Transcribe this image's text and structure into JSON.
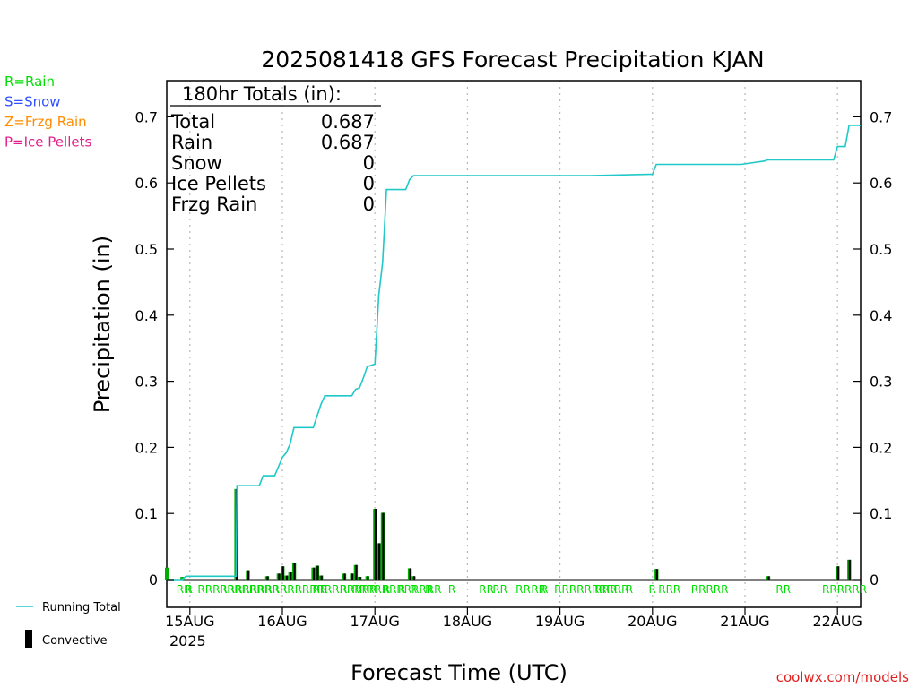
{
  "chart_data": {
    "type": "line",
    "title": "2025081418 GFS Forecast Precipitation KJAN",
    "xlabel": "Forecast Time (UTC)",
    "ylabel": "Precipitation (in)",
    "ylim": [
      0,
      0.75
    ],
    "yticks": [
      "0",
      "0.1",
      "0.2",
      "0.3",
      "0.4",
      "0.5",
      "0.6",
      "0.7"
    ],
    "xticks": [
      {
        "t": 6,
        "label": "15AUG"
      },
      {
        "t": 30,
        "label": "16AUG"
      },
      {
        "t": 54,
        "label": "17AUG"
      },
      {
        "t": 78,
        "label": "18AUG"
      },
      {
        "t": 102,
        "label": "19AUG"
      },
      {
        "t": 126,
        "label": "20AUG"
      },
      {
        "t": 150,
        "label": "21AUG"
      },
      {
        "t": 174,
        "label": "22AUG"
      }
    ],
    "year_label": "2025",
    "grid": true,
    "colors": {
      "running_total": "#20c8c8",
      "convective": "#000000",
      "bar_fill": "#00b000",
      "rain": "#00e000",
      "snow": "#3050ff",
      "frzg": "#ff8c00",
      "ice": "#e0208c",
      "credit": "#e02020"
    },
    "totals_box": {
      "header": "180hr Totals (in):",
      "rows": [
        {
          "label": "Total",
          "value": "0.687"
        },
        {
          "label": "Rain",
          "value": "0.687"
        },
        {
          "label": "Snow",
          "value": "0"
        },
        {
          "label": "Ice Pellets",
          "value": "0"
        },
        {
          "label": "Frzg Rain",
          "value": "0"
        }
      ]
    },
    "ptype_key": [
      {
        "label": "R=Rain",
        "color": "#00e000"
      },
      {
        "label": "S=Snow",
        "color": "#3050ff"
      },
      {
        "label": "Z=Frzg Rain",
        "color": "#ff8c00"
      },
      {
        "label": "P=Ice Pellets",
        "color": "#e0208c"
      }
    ],
    "legend": {
      "running_total": "Running Total",
      "convective": "Convective"
    },
    "credit": "coolwx.com/models",
    "series": [
      {
        "name": "Running Total",
        "points": [
          [
            0,
            0
          ],
          [
            4,
            0
          ],
          [
            5,
            0.005
          ],
          [
            18,
            0.005
          ],
          [
            18.2,
            0.142
          ],
          [
            24,
            0.142
          ],
          [
            25,
            0.157
          ],
          [
            28,
            0.157
          ],
          [
            30,
            0.185
          ],
          [
            31,
            0.192
          ],
          [
            32,
            0.205
          ],
          [
            33,
            0.23
          ],
          [
            38,
            0.23
          ],
          [
            40,
            0.265
          ],
          [
            41,
            0.278
          ],
          [
            48,
            0.278
          ],
          [
            49,
            0.288
          ],
          [
            50,
            0.29
          ],
          [
            51,
            0.305
          ],
          [
            52,
            0.322
          ],
          [
            54,
            0.326
          ],
          [
            55,
            0.43
          ],
          [
            56,
            0.48
          ],
          [
            57,
            0.59
          ],
          [
            62,
            0.59
          ],
          [
            63,
            0.605
          ],
          [
            64,
            0.611
          ],
          [
            100,
            0.611
          ],
          [
            110,
            0.611
          ],
          [
            125,
            0.613
          ],
          [
            126,
            0.613
          ],
          [
            127,
            0.628
          ],
          [
            149,
            0.628
          ],
          [
            155,
            0.633
          ],
          [
            156,
            0.635
          ],
          [
            173,
            0.635
          ],
          [
            174,
            0.655
          ],
          [
            176,
            0.655
          ],
          [
            177,
            0.687
          ],
          [
            180,
            0.687
          ]
        ]
      }
    ],
    "bars": [
      [
        0,
        0.018,
        0
      ],
      [
        4,
        0.004,
        0
      ],
      [
        18,
        0.137,
        0.137
      ],
      [
        21,
        0.014,
        0.014
      ],
      [
        26,
        0.005,
        0.005
      ],
      [
        29,
        0.009,
        0.009
      ],
      [
        30,
        0.02,
        0.02
      ],
      [
        31,
        0.006,
        0.006
      ],
      [
        32,
        0.012,
        0.012
      ],
      [
        33,
        0.025,
        0.025
      ],
      [
        38,
        0.018,
        0.018
      ],
      [
        39,
        0.021,
        0.021
      ],
      [
        40,
        0.006,
        0.006
      ],
      [
        46,
        0.009,
        0.009
      ],
      [
        48,
        0.009,
        0.009
      ],
      [
        49,
        0.022,
        0.022
      ],
      [
        50,
        0.004,
        0.004
      ],
      [
        52,
        0.005,
        0.005
      ],
      [
        54,
        0.107,
        0.107
      ],
      [
        55,
        0.055,
        0.055
      ],
      [
        56,
        0.101,
        0.101
      ],
      [
        63,
        0.017,
        0.017
      ],
      [
        64,
        0.005,
        0.005
      ],
      [
        127,
        0.016,
        0.016
      ],
      [
        156,
        0.005,
        0.005
      ],
      [
        174,
        0.02,
        0.02
      ],
      [
        177,
        0.03,
        0.03
      ]
    ],
    "ptype_marks": [
      {
        "t": 2.5,
        "v": "RR"
      },
      {
        "t": 4.8,
        "v": "R"
      },
      {
        "t": 8,
        "v": "RRRRRRRRRRRR"
      },
      {
        "t": 13.7,
        "v": "RRRR"
      },
      {
        "t": 17.5,
        "v": "RRRR"
      },
      {
        "t": 21.4,
        "v": "RRRR"
      },
      {
        "t": 25.4,
        "v": "RRRRRRRRRRRRRRR"
      },
      {
        "t": 37.8,
        "v": "RR"
      },
      {
        "t": 39.8,
        "v": "R"
      },
      {
        "t": 44.9,
        "v": "R"
      },
      {
        "t": 48,
        "v": "RRRRRRRRRRRR"
      },
      {
        "t": 56,
        "v": "R"
      },
      {
        "t": 60,
        "v": "R"
      },
      {
        "t": 63,
        "v": "R"
      },
      {
        "t": 67,
        "v": "R"
      },
      {
        "t": 73,
        "v": "R"
      },
      {
        "t": 81,
        "v": "RR"
      },
      {
        "t": 84.5,
        "v": "RR"
      },
      {
        "t": 90.5,
        "v": "RR"
      },
      {
        "t": 94.5,
        "v": "RR"
      },
      {
        "t": 97,
        "v": "R"
      },
      {
        "t": 100.5,
        "v": "RRRRRRRRRR"
      },
      {
        "t": 111,
        "v": "RRR"
      },
      {
        "t": 119,
        "v": "R"
      },
      {
        "t": 125,
        "v": "R"
      },
      {
        "t": 127.5,
        "v": "RRR"
      },
      {
        "t": 136,
        "v": "RRRRR"
      },
      {
        "t": 158,
        "v": "RR"
      },
      {
        "t": 170,
        "v": "RRRRRR"
      }
    ]
  }
}
